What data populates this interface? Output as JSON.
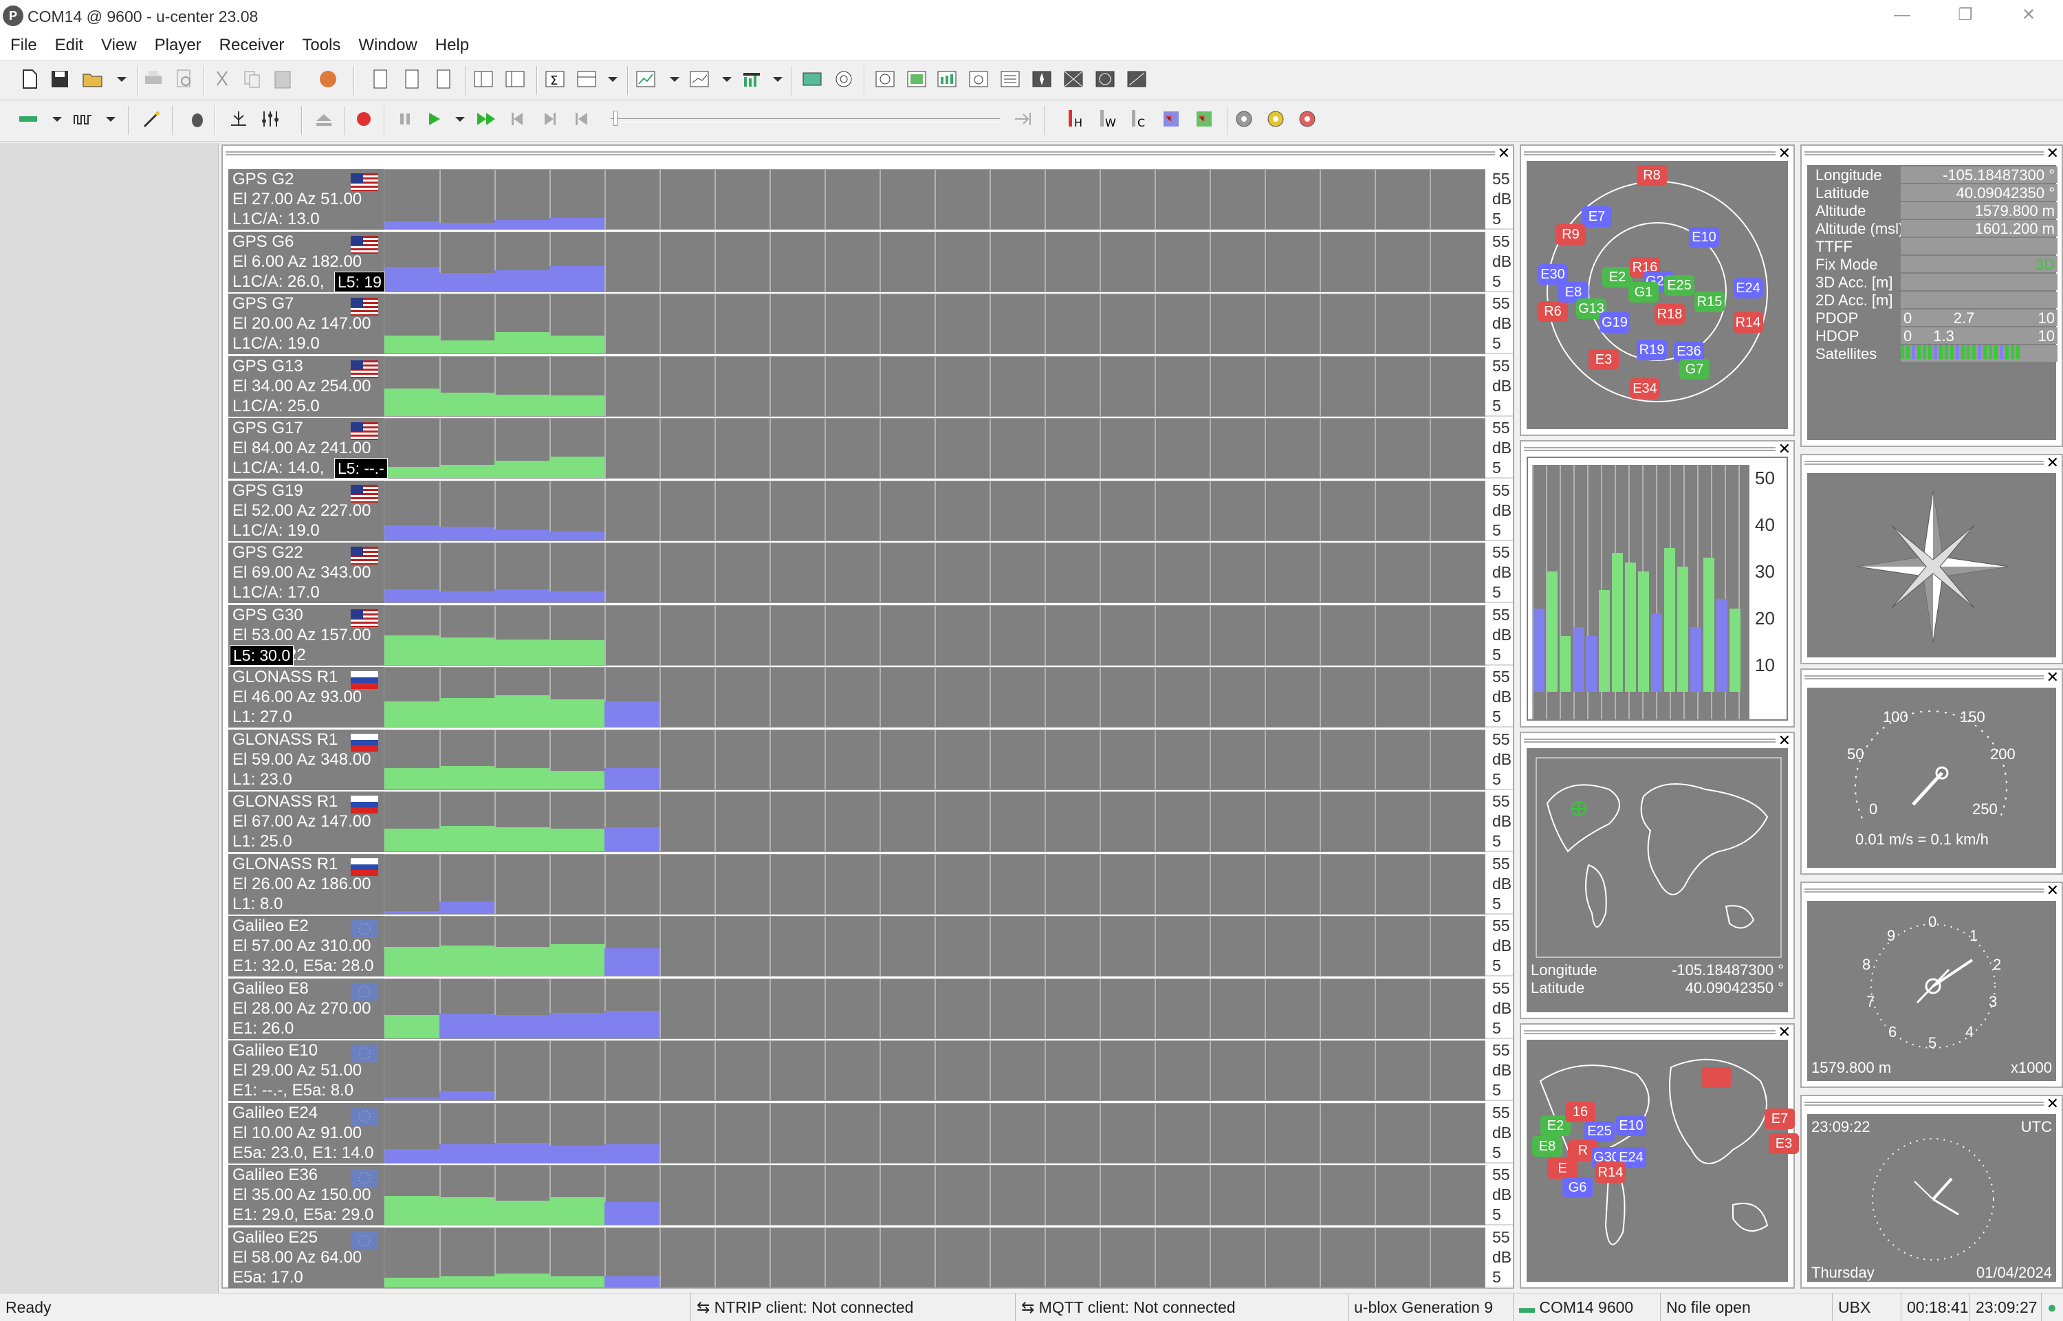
{
  "window": {
    "title": "COM14 @ 9600 - u-center 23.08",
    "app_icon": "P",
    "minimize": "—",
    "restore": "❐",
    "close": "✕"
  },
  "menu": [
    "File",
    "Edit",
    "View",
    "Player",
    "Receiver",
    "Tools",
    "Window",
    "Help"
  ],
  "axis": {
    "top": "55",
    "unit": "dB",
    "bottom": "5"
  },
  "signals": [
    {
      "name": "GPS G2",
      "flag": "us",
      "el": "El 27.00 Az 51.00",
      "cn": "L1C/A: 13.0",
      "bars": [
        {
          "v": 0.12,
          "c": "b"
        },
        {
          "v": 0.1,
          "c": "b"
        },
        {
          "v": 0.15,
          "c": "b"
        },
        {
          "v": 0.18,
          "c": "b"
        }
      ]
    },
    {
      "name": "GPS G6",
      "flag": "us",
      "el": "El 6.00 Az 182.00",
      "cn": "L1C/A: 26.0,",
      "overlay": "L5: 19",
      "bars": [
        {
          "v": 0.4,
          "c": "b"
        },
        {
          "v": 0.3,
          "c": "b"
        },
        {
          "v": 0.35,
          "c": "b"
        },
        {
          "v": 0.42,
          "c": "b"
        }
      ]
    },
    {
      "name": "GPS G7",
      "flag": "us",
      "el": "El 20.00 Az 147.00",
      "cn": "L1C/A: 19.0",
      "bars": [
        {
          "v": 0.3,
          "c": "g"
        },
        {
          "v": 0.22,
          "c": "g"
        },
        {
          "v": 0.35,
          "c": "g"
        },
        {
          "v": 0.3,
          "c": "g"
        }
      ]
    },
    {
      "name": "GPS G13",
      "flag": "us",
      "el": "El 34.00 Az 254.00",
      "cn": "L1C/A: 25.0",
      "bars": [
        {
          "v": 0.45,
          "c": "g"
        },
        {
          "v": 0.38,
          "c": "g"
        },
        {
          "v": 0.35,
          "c": "g"
        },
        {
          "v": 0.33,
          "c": "g"
        }
      ]
    },
    {
      "name": "GPS G17",
      "flag": "us",
      "el": "El 84.00 Az 241.00",
      "cn": "L1C/A: 14.0,",
      "overlay": "L5: --.-",
      "bars": [
        {
          "v": 0.18,
          "c": "g"
        },
        {
          "v": 0.22,
          "c": "g"
        },
        {
          "v": 0.28,
          "c": "g"
        },
        {
          "v": 0.35,
          "c": "g"
        }
      ]
    },
    {
      "name": "GPS G19",
      "flag": "us",
      "el": "El 52.00 Az 227.00",
      "cn": "L1C/A: 19.0",
      "bars": [
        {
          "v": 0.25,
          "c": "b"
        },
        {
          "v": 0.22,
          "c": "b"
        },
        {
          "v": 0.18,
          "c": "b"
        },
        {
          "v": 0.14,
          "c": "b"
        }
      ]
    },
    {
      "name": "GPS G22",
      "flag": "us",
      "el": "El 69.00 Az 343.00",
      "cn": "L1C/A: 17.0",
      "bars": [
        {
          "v": 0.22,
          "c": "b"
        },
        {
          "v": 0.18,
          "c": "b"
        },
        {
          "v": 0.22,
          "c": "b"
        },
        {
          "v": 0.18,
          "c": "b"
        }
      ]
    },
    {
      "name": "GPS G30",
      "flag": "us",
      "el": "El 53.00 Az 157.00",
      "cn": "L1C/A: 22",
      "overlay": "L5: 30.0",
      "bars": [
        {
          "v": 0.48,
          "c": "g"
        },
        {
          "v": 0.45,
          "c": "g"
        },
        {
          "v": 0.42,
          "c": "g"
        },
        {
          "v": 0.4,
          "c": "g"
        }
      ]
    },
    {
      "name": "GLONASS R1",
      "flag": "ru",
      "el": "El 46.00 Az 93.00",
      "cn": "L1: 27.0",
      "bars": [
        {
          "v": 0.42,
          "c": "g"
        },
        {
          "v": 0.48,
          "c": "g"
        },
        {
          "v": 0.52,
          "c": "g"
        },
        {
          "v": 0.45,
          "c": "g"
        },
        {
          "v": 0.42,
          "c": "b"
        }
      ]
    },
    {
      "name": "GLONASS R1",
      "flag": "ru",
      "el": "El 59.00 Az 348.00",
      "cn": "L1: 23.0",
      "bars": [
        {
          "v": 0.35,
          "c": "g"
        },
        {
          "v": 0.38,
          "c": "g"
        },
        {
          "v": 0.35,
          "c": "g"
        },
        {
          "v": 0.3,
          "c": "g"
        },
        {
          "v": 0.35,
          "c": "b"
        }
      ]
    },
    {
      "name": "GLONASS R1",
      "flag": "ru",
      "el": "El 67.00 Az 147.00",
      "cn": "L1: 25.0",
      "bars": [
        {
          "v": 0.38,
          "c": "g"
        },
        {
          "v": 0.42,
          "c": "g"
        },
        {
          "v": 0.4,
          "c": "g"
        },
        {
          "v": 0.38,
          "c": "g"
        },
        {
          "v": 0.4,
          "c": "b"
        }
      ]
    },
    {
      "name": "GLONASS R1",
      "flag": "ru",
      "el": "El 26.00 Az 186.00",
      "cn": "L1: 8.0",
      "bars": [
        {
          "v": 0.04,
          "c": "b"
        },
        {
          "v": 0.2,
          "c": "b"
        }
      ]
    },
    {
      "name": "Galileo E2",
      "flag": "eu",
      "el": "El 57.00 Az 310.00",
      "cn": "E1: 32.0, E5a: 28.0",
      "bars": [
        {
          "v": 0.48,
          "c": "g"
        },
        {
          "v": 0.5,
          "c": "g"
        },
        {
          "v": 0.48,
          "c": "g"
        },
        {
          "v": 0.52,
          "c": "g"
        },
        {
          "v": 0.45,
          "c": "b"
        }
      ]
    },
    {
      "name": "Galileo E8",
      "flag": "eu",
      "el": "El 28.00 Az 270.00",
      "cn": "E1: 26.0",
      "bars": [
        {
          "v": 0.38,
          "c": "g"
        },
        {
          "v": 0.4,
          "c": "b"
        },
        {
          "v": 0.38,
          "c": "b"
        },
        {
          "v": 0.42,
          "c": "b"
        },
        {
          "v": 0.45,
          "c": "b"
        }
      ]
    },
    {
      "name": "Galileo E10",
      "flag": "eu",
      "el": "El 29.00 Az 51.00",
      "cn": "E1: --.-, E5a: 8.0",
      "bars": [
        {
          "v": 0.04,
          "c": "b"
        },
        {
          "v": 0.15,
          "c": "b"
        }
      ]
    },
    {
      "name": "Galileo E24",
      "flag": "eu",
      "el": "El 10.00 Az 91.00",
      "cn": "E5a: 23.0, E1: 14.0",
      "bars": [
        {
          "v": 0.22,
          "c": "b"
        },
        {
          "v": 0.3,
          "c": "b"
        },
        {
          "v": 0.32,
          "c": "b"
        },
        {
          "v": 0.28,
          "c": "b"
        },
        {
          "v": 0.3,
          "c": "b"
        }
      ]
    },
    {
      "name": "Galileo E36",
      "flag": "eu",
      "el": "El 35.00 Az 150.00",
      "cn": "E1: 29.0, E5a: 29.0",
      "bars": [
        {
          "v": 0.48,
          "c": "g"
        },
        {
          "v": 0.45,
          "c": "g"
        },
        {
          "v": 0.4,
          "c": "g"
        },
        {
          "v": 0.45,
          "c": "g"
        },
        {
          "v": 0.38,
          "c": "b"
        }
      ]
    },
    {
      "name": "Galileo E25",
      "flag": "eu",
      "el": "El 58.00 Az 64.00",
      "cn": "E5a: 17.0",
      "bars": [
        {
          "v": 0.15,
          "c": "g"
        },
        {
          "v": 0.18,
          "c": "g"
        },
        {
          "v": 0.22,
          "c": "g"
        },
        {
          "v": 0.18,
          "c": "g"
        },
        {
          "v": 0.18,
          "c": "b"
        }
      ]
    }
  ],
  "sky_sats": [
    {
      "id": "R8",
      "c": "rd"
    },
    {
      "id": "E7",
      "c": "bl"
    },
    {
      "id": "R9",
      "c": "rd"
    },
    {
      "id": "E30",
      "c": "bl"
    },
    {
      "id": "R6",
      "c": "rd"
    },
    {
      "id": "E8",
      "c": "bl"
    },
    {
      "id": "G13",
      "c": "gr"
    },
    {
      "id": "G19",
      "c": "bl"
    },
    {
      "id": "E2",
      "c": "gr"
    },
    {
      "id": "R16",
      "c": "rd"
    },
    {
      "id": "G22",
      "c": "bl"
    },
    {
      "id": "G1",
      "c": "gr"
    },
    {
      "id": "R18",
      "c": "rd"
    },
    {
      "id": "E10",
      "c": "bl"
    },
    {
      "id": "E25",
      "c": "gr"
    },
    {
      "id": "R15",
      "c": "gr"
    },
    {
      "id": "E24",
      "c": "bl"
    },
    {
      "id": "R14",
      "c": "rd"
    },
    {
      "id": "E36",
      "c": "bl"
    },
    {
      "id": "G7",
      "c": "gr"
    },
    {
      "id": "R19",
      "c": "bl"
    },
    {
      "id": "E3",
      "c": "rd"
    },
    {
      "id": "E34",
      "c": "rd"
    }
  ],
  "hist_axis": [
    "50",
    "40",
    "30",
    "20",
    "10"
  ],
  "hist_bars": [
    {
      "v": 18,
      "c": "b"
    },
    {
      "v": 26,
      "c": "g"
    },
    {
      "v": 12,
      "c": "g"
    },
    {
      "v": 14,
      "c": "b"
    },
    {
      "v": 12,
      "c": "b"
    },
    {
      "v": 22,
      "c": "g"
    },
    {
      "v": 30,
      "c": "g"
    },
    {
      "v": 28,
      "c": "g"
    },
    {
      "v": 26,
      "c": "g"
    },
    {
      "v": 17,
      "c": "b"
    },
    {
      "v": 31,
      "c": "g"
    },
    {
      "v": 27,
      "c": "g"
    },
    {
      "v": 14,
      "c": "b"
    },
    {
      "v": 29,
      "c": "g"
    },
    {
      "v": 20,
      "c": "b"
    },
    {
      "v": 18,
      "c": "g"
    }
  ],
  "map1": {
    "lon_label": "Longitude",
    "lon": "-105.18487300 °",
    "lat_label": "Latitude",
    "lat": "40.09042350 °"
  },
  "info": [
    {
      "k": "Longitude",
      "v": "-105.18487300 °"
    },
    {
      "k": "Latitude",
      "v": "40.09042350 °"
    },
    {
      "k": "Altitude",
      "v": "1579.800 m"
    },
    {
      "k": "Altitude (msl)",
      "v": "1601.200 m"
    },
    {
      "k": "TTFF",
      "v": ""
    },
    {
      "k": "Fix Mode",
      "v": "3D"
    },
    {
      "k": "3D Acc. [m]",
      "v": ""
    },
    {
      "k": "2D Acc. [m]",
      "v": ""
    },
    {
      "k": "PDOP",
      "v": "2.7",
      "min": "0",
      "max": "10"
    },
    {
      "k": "HDOP",
      "v": "1.3",
      "min": "0",
      "max": "10"
    },
    {
      "k": "Satellites",
      "v": ""
    }
  ],
  "speed": {
    "t0": "0",
    "t50": "50",
    "t100": "100",
    "t150": "150",
    "t200": "200",
    "t250": "250",
    "caption": "0.01 m/s = 0.1 km/h"
  },
  "altimeter": {
    "t0": "0",
    "t1": "1",
    "t2": "2",
    "t3": "3",
    "t4": "4",
    "t5": "5",
    "t6": "6",
    "t7": "7",
    "t8": "8",
    "t9": "9",
    "alt": "1579.800 m",
    "mult": "x1000"
  },
  "clock": {
    "time": "23:09:22",
    "zone": "UTC",
    "day": "Thursday",
    "date": "01/04/2024"
  },
  "status": {
    "ready": "Ready",
    "ntrip": "NTRIP client: Not connected",
    "mqtt": "MQTT client: Not connected",
    "gen": "u-blox Generation 9",
    "port": "COM14 9600",
    "file": "No file open",
    "proto": "UBX",
    "elapsed": "00:18:41",
    "clock": "23:09:27"
  }
}
